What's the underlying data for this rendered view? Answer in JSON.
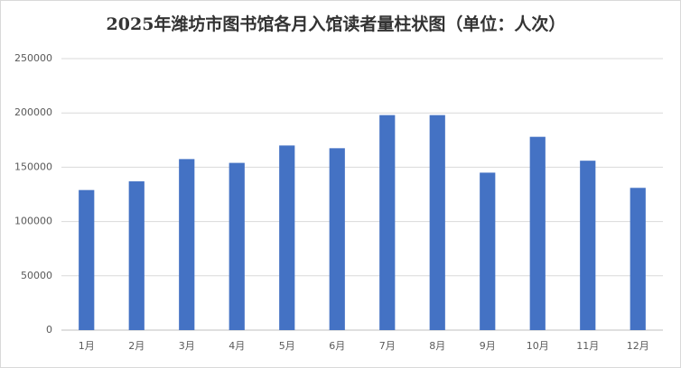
{
  "chart_data": {
    "type": "bar",
    "title": "2025年潍坊市图书馆各月入馆读者量柱状图（单位：人次）",
    "categories": [
      "1月",
      "2月",
      "3月",
      "4月",
      "5月",
      "6月",
      "7月",
      "8月",
      "9月",
      "10月",
      "11月",
      "12月"
    ],
    "values": [
      129000,
      137000,
      157500,
      154000,
      170000,
      167500,
      198000,
      198000,
      145000,
      178000,
      156000,
      131000
    ],
    "color": "#4472c4",
    "ylim": [
      0,
      250000
    ],
    "yticks": [
      0,
      50000,
      100000,
      150000,
      200000,
      250000
    ],
    "grid": true
  }
}
